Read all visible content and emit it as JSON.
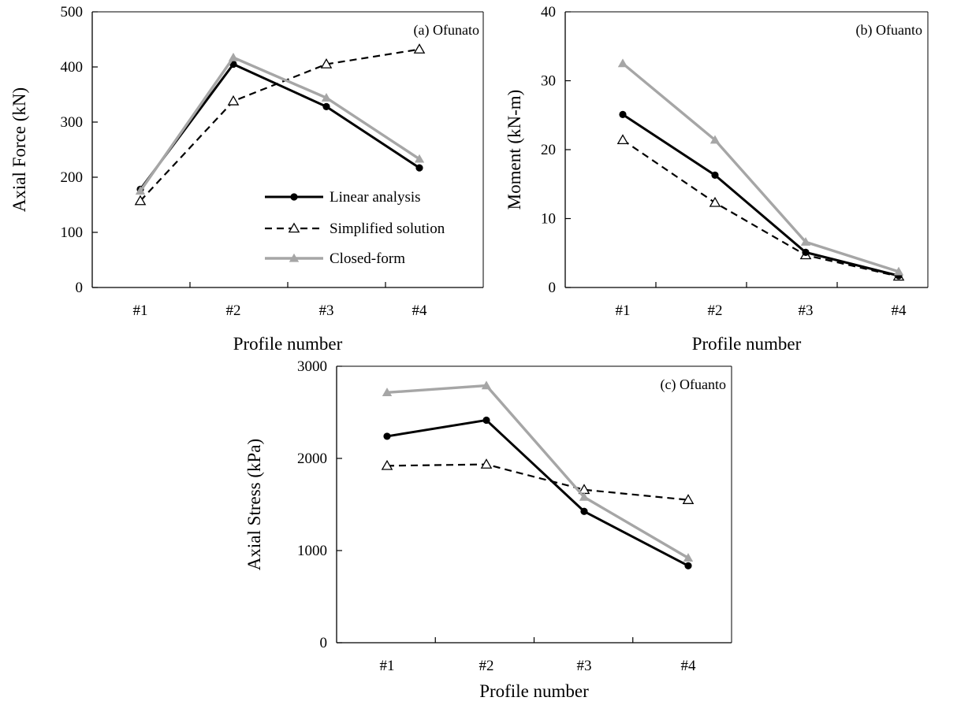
{
  "style": {
    "linear_color": "#000000",
    "simplified_color": "#000000",
    "closed_color": "#a6a6a6",
    "frame_color": "#000000"
  },
  "legend": {
    "linear": "Linear analysis",
    "simplified": "Simplified solution",
    "closed": "Closed-form"
  },
  "chart_data": [
    {
      "type": "line",
      "panel_label": "(a) Ofunato",
      "title": "",
      "xlabel": "Profile number",
      "ylabel": "Axial Force (kN)",
      "categories": [
        "#1",
        "#2",
        "#3",
        "#4"
      ],
      "ylim": [
        0,
        500
      ],
      "yticks": [
        0,
        100,
        200,
        300,
        400,
        500
      ],
      "legend_position": "center-right",
      "series": [
        {
          "name": "Linear analysis",
          "style": "solid-black-circle",
          "values": [
            178,
            405,
            328,
            217
          ]
        },
        {
          "name": "Simplified solution",
          "style": "dashed-black-open-triangle",
          "values": [
            157,
            338,
            405,
            432
          ]
        },
        {
          "name": "Closed-form",
          "style": "solid-gray-triangle",
          "values": [
            175,
            417,
            344,
            233
          ]
        }
      ]
    },
    {
      "type": "line",
      "panel_label": "(b) Ofuanto",
      "title": "",
      "xlabel": "Profile number",
      "ylabel": "Moment (kN-m)",
      "categories": [
        "#1",
        "#2",
        "#3",
        "#4"
      ],
      "ylim": [
        0,
        40
      ],
      "yticks": [
        0,
        10,
        20,
        30,
        40
      ],
      "series": [
        {
          "name": "Linear analysis",
          "style": "solid-black-circle",
          "values": [
            25.1,
            16.3,
            5.1,
            1.7
          ]
        },
        {
          "name": "Simplified solution",
          "style": "dashed-black-open-triangle",
          "values": [
            21.4,
            12.3,
            4.7,
            1.6
          ]
        },
        {
          "name": "Closed-form",
          "style": "solid-gray-triangle",
          "values": [
            32.5,
            21.4,
            6.6,
            2.3
          ]
        }
      ]
    },
    {
      "type": "line",
      "panel_label": "(c) Ofuanto",
      "title": "",
      "xlabel": "Profile number",
      "ylabel": "Axial Stress (kPa)",
      "categories": [
        "#1",
        "#2",
        "#3",
        "#4"
      ],
      "ylim": [
        0,
        3000
      ],
      "yticks": [
        0,
        1000,
        2000,
        3000
      ],
      "series": [
        {
          "name": "Linear analysis",
          "style": "solid-black-circle",
          "values": [
            2240,
            2415,
            1425,
            835
          ]
        },
        {
          "name": "Simplified solution",
          "style": "dashed-black-open-triangle",
          "values": [
            1920,
            1935,
            1660,
            1550
          ]
        },
        {
          "name": "Closed-form",
          "style": "solid-gray-triangle",
          "values": [
            2715,
            2790,
            1580,
            920
          ]
        }
      ]
    }
  ]
}
